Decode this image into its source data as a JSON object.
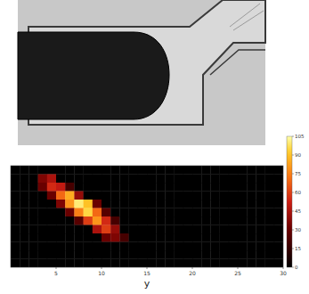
{
  "chart_data": {
    "type": "heatmap",
    "x_label": "y",
    "xlim": [
      0,
      30
    ],
    "xticks": [
      5,
      10,
      15,
      20,
      25,
      30
    ],
    "tick_labels": "x",
    "cells": [
      [
        0,
        0,
        0,
        0,
        0,
        0,
        0,
        0,
        0,
        0,
        0,
        0,
        0,
        0,
        0,
        0,
        0,
        0,
        0,
        0,
        0,
        0,
        0,
        0,
        0,
        0,
        0,
        0,
        0,
        0
      ],
      [
        0,
        0,
        0,
        35,
        45,
        0,
        0,
        0,
        0,
        0,
        0,
        0,
        0,
        0,
        0,
        0,
        0,
        0,
        0,
        0,
        0,
        0,
        0,
        0,
        0,
        0,
        0,
        0,
        0,
        0
      ],
      [
        0,
        0,
        0,
        30,
        55,
        50,
        20,
        0,
        0,
        0,
        0,
        0,
        0,
        0,
        0,
        0,
        0,
        0,
        0,
        0,
        0,
        0,
        0,
        0,
        0,
        0,
        0,
        0,
        0,
        0
      ],
      [
        0,
        0,
        0,
        0,
        30,
        70,
        85,
        40,
        0,
        0,
        0,
        0,
        0,
        0,
        0,
        0,
        0,
        0,
        0,
        0,
        0,
        0,
        0,
        0,
        0,
        0,
        0,
        0,
        0,
        0
      ],
      [
        0,
        0,
        0,
        0,
        0,
        35,
        80,
        100,
        90,
        30,
        0,
        0,
        0,
        0,
        0,
        0,
        0,
        0,
        0,
        0,
        0,
        0,
        0,
        0,
        0,
        0,
        0,
        0,
        0,
        0
      ],
      [
        0,
        0,
        0,
        0,
        0,
        0,
        30,
        75,
        95,
        70,
        25,
        0,
        0,
        0,
        0,
        0,
        0,
        0,
        0,
        0,
        0,
        0,
        0,
        0,
        0,
        0,
        0,
        0,
        0,
        0
      ],
      [
        0,
        0,
        0,
        0,
        0,
        0,
        0,
        25,
        60,
        80,
        55,
        20,
        0,
        0,
        0,
        0,
        0,
        0,
        0,
        0,
        0,
        0,
        0,
        0,
        0,
        0,
        0,
        0,
        0,
        0
      ],
      [
        0,
        0,
        0,
        0,
        0,
        0,
        0,
        0,
        0,
        45,
        60,
        40,
        0,
        0,
        0,
        0,
        0,
        0,
        0,
        0,
        0,
        0,
        0,
        0,
        0,
        0,
        0,
        0,
        0,
        0
      ],
      [
        0,
        0,
        0,
        0,
        0,
        0,
        0,
        0,
        0,
        0,
        30,
        35,
        20,
        0,
        0,
        0,
        0,
        0,
        0,
        0,
        0,
        0,
        0,
        0,
        0,
        0,
        0,
        0,
        0,
        0
      ],
      [
        0,
        0,
        0,
        0,
        0,
        0,
        0,
        0,
        0,
        0,
        0,
        0,
        0,
        0,
        0,
        0,
        0,
        0,
        0,
        0,
        0,
        0,
        0,
        0,
        0,
        0,
        0,
        0,
        0,
        0
      ],
      [
        0,
        0,
        0,
        0,
        0,
        0,
        0,
        0,
        0,
        0,
        0,
        0,
        0,
        0,
        0,
        0,
        0,
        0,
        0,
        0,
        0,
        0,
        0,
        0,
        0,
        0,
        0,
        0,
        0,
        0
      ],
      [
        0,
        0,
        0,
        0,
        0,
        0,
        0,
        0,
        0,
        0,
        0,
        0,
        0,
        0,
        0,
        0,
        0,
        0,
        0,
        0,
        0,
        0,
        0,
        0,
        0,
        0,
        0,
        0,
        0,
        0
      ]
    ],
    "colorbar_range": [
      0,
      105
    ],
    "colorbar_ticks": [
      0,
      15,
      30,
      45,
      60,
      75,
      90,
      105
    ]
  }
}
